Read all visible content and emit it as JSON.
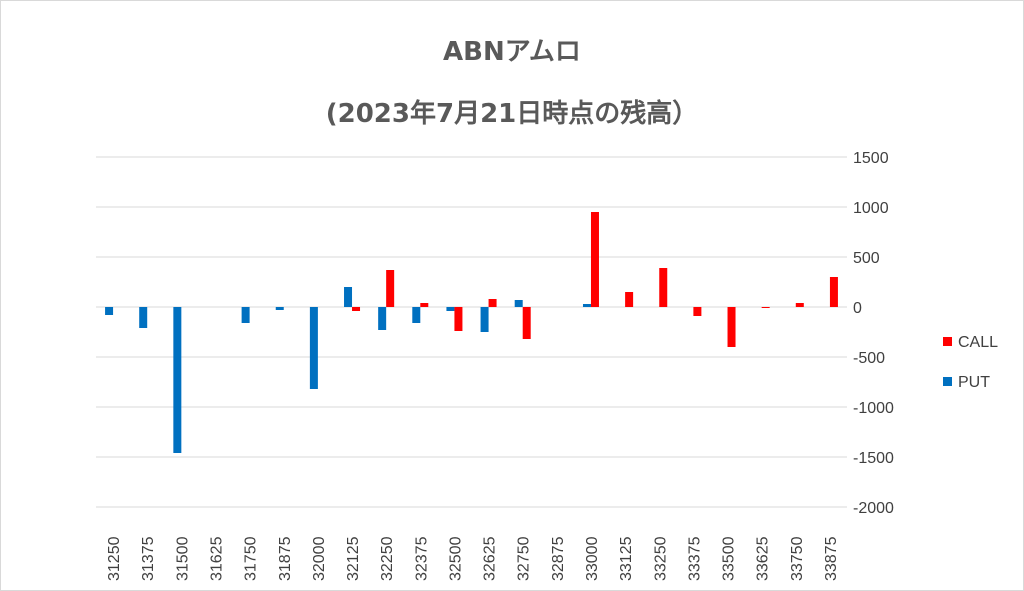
{
  "chart_data": {
    "type": "bar",
    "title": "ABNアムロ",
    "subtitle": "(2023年7月21日時点の残高）",
    "categories": [
      "31250",
      "31375",
      "31500",
      "31625",
      "31750",
      "31875",
      "32000",
      "32125",
      "32250",
      "32375",
      "32500",
      "32625",
      "32750",
      "32875",
      "33000",
      "33125",
      "33250",
      "33375",
      "33500",
      "33625",
      "33750",
      "33875"
    ],
    "series": [
      {
        "name": "CALL",
        "color": "#ff0000",
        "values": [
          null,
          null,
          null,
          null,
          null,
          null,
          null,
          -40,
          370,
          40,
          -240,
          80,
          -320,
          null,
          950,
          150,
          390,
          -90,
          -400,
          -10,
          40,
          300
        ]
      },
      {
        "name": "PUT",
        "color": "#0070c0",
        "values": [
          -80,
          -210,
          -1460,
          null,
          -160,
          -30,
          -820,
          200,
          -230,
          -160,
          -40,
          -250,
          70,
          null,
          30,
          null,
          null,
          null,
          null,
          null,
          null,
          null
        ]
      }
    ],
    "ylim": [
      -2000,
      1500
    ],
    "yticks": [
      1500,
      1000,
      500,
      0,
      -500,
      -1000,
      -1500,
      -2000
    ],
    "ytick_labels": [
      "1500",
      "1000",
      "500",
      "0",
      "-500",
      "-1000",
      "-1500",
      "-2000"
    ],
    "legend_position": "right",
    "grid": true
  }
}
